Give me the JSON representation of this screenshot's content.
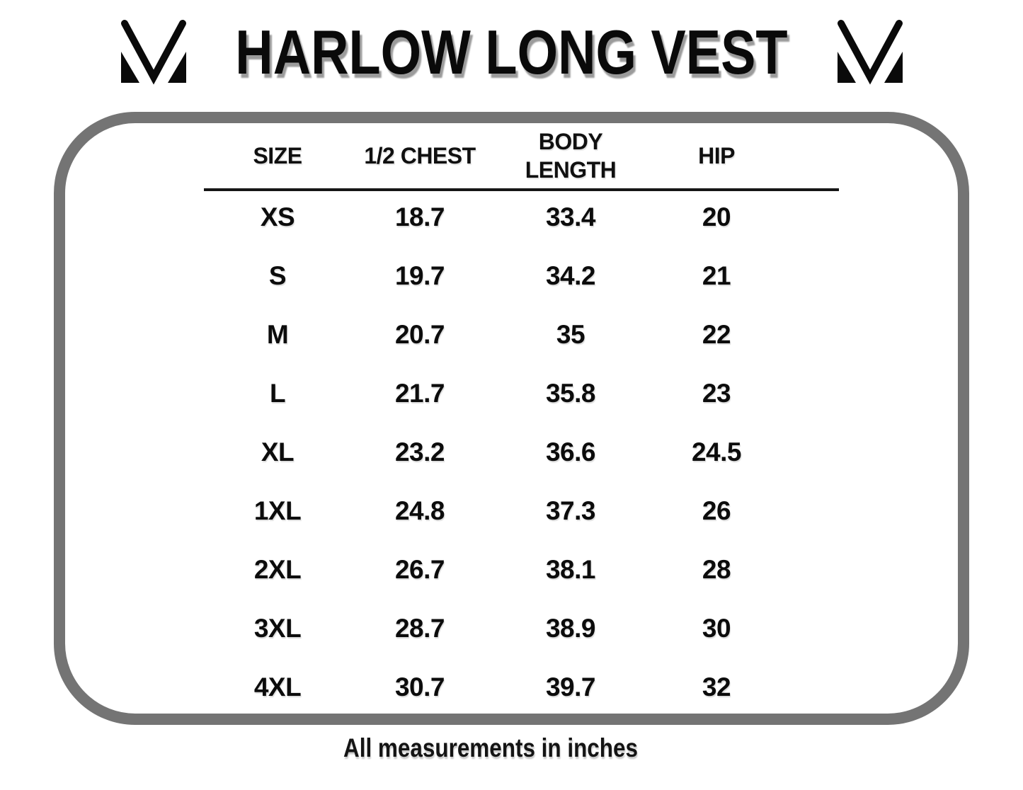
{
  "header": {
    "title": "HARLOW LONG VEST"
  },
  "logo": {
    "name": "brand-m-monogram",
    "color": "#0a0a0a"
  },
  "size_chart": {
    "columns": [
      "SIZE",
      "1/2 CHEST",
      "BODY LENGTH",
      "HIP"
    ],
    "rows": [
      [
        "XS",
        "18.7",
        "33.4",
        "20"
      ],
      [
        "S",
        "19.7",
        "34.2",
        "21"
      ],
      [
        "M",
        "20.7",
        "35",
        "22"
      ],
      [
        "L",
        "21.7",
        "35.8",
        "23"
      ],
      [
        "XL",
        "23.2",
        "36.6",
        "24.5"
      ],
      [
        "1XL",
        "24.8",
        "37.3",
        "26"
      ],
      [
        "2XL",
        "26.7",
        "38.1",
        "28"
      ],
      [
        "3XL",
        "28.7",
        "38.9",
        "30"
      ],
      [
        "4XL",
        "30.7",
        "39.7",
        "32"
      ]
    ],
    "footnote": "All measurements in inches"
  },
  "colors": {
    "border_gray": "#747474",
    "title_shadow": "#9b9b9b",
    "text": "#0c0c0c"
  }
}
